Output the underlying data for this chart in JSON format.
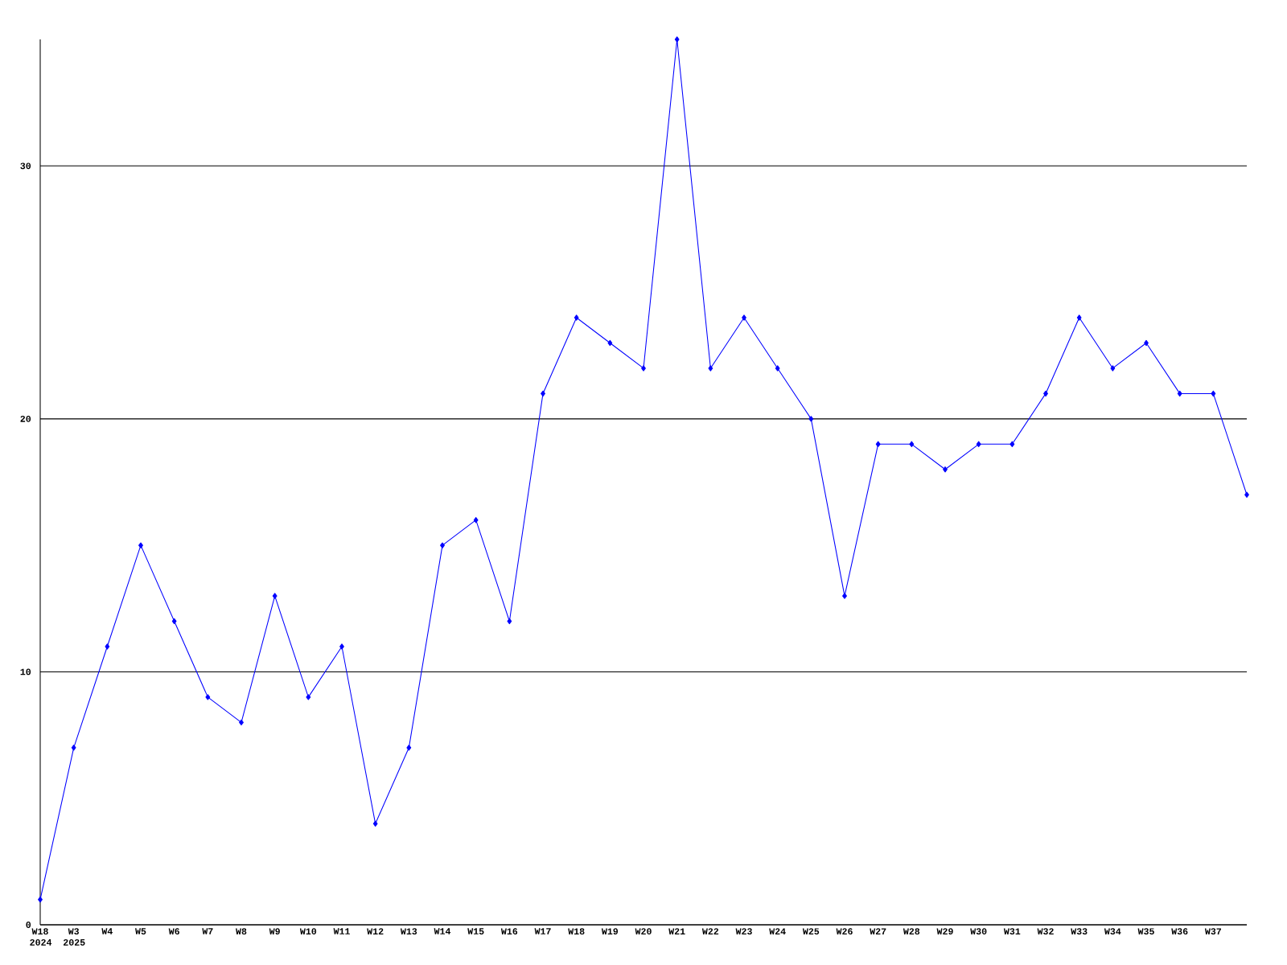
{
  "chart_data": {
    "type": "line",
    "categories": [
      "W18 2024",
      "W3 2025",
      "W4",
      "W5",
      "W6",
      "W7",
      "W8",
      "W9",
      "W10",
      "W11",
      "W12",
      "W13",
      "W14",
      "W15",
      "W16",
      "W17",
      "W18",
      "W19",
      "W20",
      "W21",
      "W22",
      "W23",
      "W24",
      "W25",
      "W26",
      "W27",
      "W28",
      "W29",
      "W30",
      "W31",
      "W32",
      "W33",
      "W34",
      "W35",
      "W36",
      "W37",
      null
    ],
    "values": [
      1,
      7,
      11,
      15,
      12,
      9,
      8,
      13,
      9,
      11,
      4,
      7,
      15,
      16,
      12,
      21,
      24,
      23,
      22,
      35,
      22,
      24,
      22,
      20,
      13,
      19,
      19,
      18,
      19,
      19,
      21,
      24,
      22,
      23,
      21,
      21,
      17
    ],
    "color": "#0000ff",
    "marker": "diamond",
    "line_style": "solid",
    "grid": "y",
    "ylim": [
      0,
      35
    ],
    "yticks": [
      0,
      10,
      20,
      30
    ]
  }
}
